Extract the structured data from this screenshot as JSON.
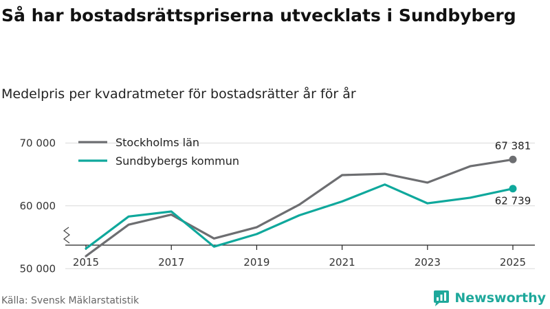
{
  "header": {
    "title": "Så har bostadsrättspriserna utvecklats i Sundbyberg",
    "subtitle": "Medelpris per kvadratmeter för bostadsrätter år för år"
  },
  "footer": {
    "source": "Källa: Svensk Mäklarstatistik",
    "brand": "Newsworthy"
  },
  "colors": {
    "stockholm": "#6d6e71",
    "sundbyberg": "#0fa89c",
    "grid": "#d9d9d9",
    "axis": "#222222",
    "brand": "#1ea89b"
  },
  "chart_data": {
    "type": "line",
    "title": "Så har bostadsrättspriserna utvecklats i Sundbyberg",
    "subtitle": "Medelpris per kvadratmeter för bostadsrätter år för år",
    "xlabel": "",
    "ylabel": "",
    "x": [
      2015,
      2016,
      2017,
      2018,
      2019,
      2020,
      2021,
      2022,
      2023,
      2024,
      2025
    ],
    "x_ticks": [
      "2015",
      "2017",
      "2019",
      "2021",
      "2023",
      "2025"
    ],
    "ylim": [
      45000,
      72000
    ],
    "y_ticks": [
      50000,
      60000,
      70000
    ],
    "y_tick_labels": [
      "50 000",
      "60 000",
      "70 000"
    ],
    "y_axis_break": true,
    "grid": true,
    "legend_position": "top-left",
    "series": [
      {
        "name": "Stockholms län",
        "color_key": "stockholm",
        "values": [
          52000,
          57000,
          58600,
          54800,
          56600,
          60200,
          64900,
          65100,
          63700,
          66300,
          67381
        ],
        "end_label": "67 381"
      },
      {
        "name": "Sundbybergs kommun",
        "color_key": "sundbyberg",
        "values": [
          53200,
          58300,
          59100,
          53500,
          55500,
          58500,
          60700,
          63400,
          60400,
          61300,
          62739
        ],
        "end_label": "62 739"
      }
    ]
  }
}
